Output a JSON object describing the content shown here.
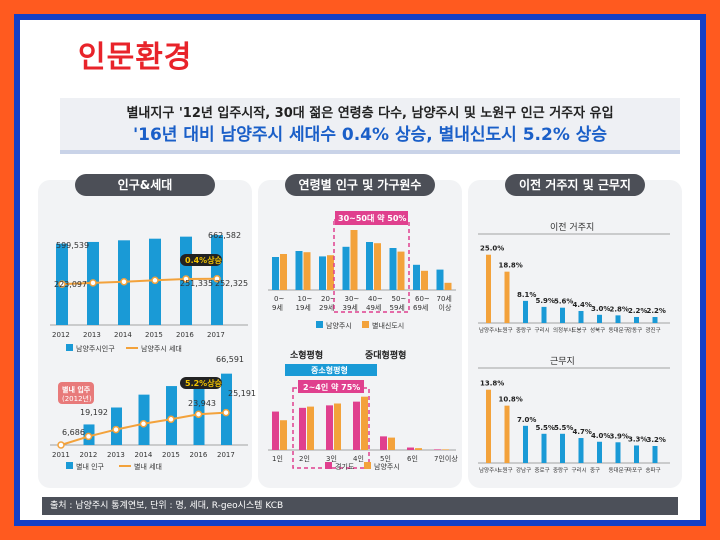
{
  "page": {
    "title": "인문환경",
    "banner_line1": "별내지구 '12년 입주시작, 30대 젊은 연령층 다수, 남양주시 및 노원구 인근 거주자 유입",
    "banner_line2": "'16년 대비 남양주시 세대수 0.4% 상승, 별내신도시 5.2% 상승",
    "footer": "출처 : 남양주시 통계연보, 단위 : 명, 세대, R-geo시스템 KCB"
  },
  "panels": {
    "left": "인구&세대",
    "middle": "연령별 인구 및 가구원수",
    "right": "이전 거주지 및 근무지"
  },
  "colors": {
    "blue": "#1a9ad6",
    "orange": "#f3a23b",
    "pink": "#e0408e",
    "yellow": "#f2c200",
    "red": "#e8232a"
  },
  "chart_data": [
    {
      "type": "bar",
      "id": "namyangju-pop",
      "categories": [
        "2012",
        "2013",
        "2014",
        "2015",
        "2016",
        "2017"
      ],
      "series": [
        {
          "name": "남양주시인구",
          "values": [
            599539,
            612000,
            624000,
            636000,
            651000,
            662582
          ]
        },
        {
          "name": "남양주시 세대",
          "values": [
            223097,
            230000,
            236000,
            244000,
            251335,
            252325
          ]
        }
      ],
      "labels": [
        "599,539",
        "662,582",
        "223,097",
        "251,335",
        "252,325"
      ],
      "annotation": "0.4%상승"
    },
    {
      "type": "bar",
      "id": "byeollae-pop",
      "categories": [
        "2011",
        "2012",
        "2013",
        "2014",
        "2015",
        "2016",
        "2017"
      ],
      "series": [
        {
          "name": "별내 인구",
          "values": [
            0,
            19192,
            35000,
            47000,
            55000,
            61000,
            66591
          ]
        },
        {
          "name": "별내 세대",
          "values": [
            0,
            6686,
            12000,
            16500,
            20000,
            23943,
            25191
          ]
        }
      ],
      "labels": [
        "19,192",
        "6,686",
        "66,591",
        "23,943",
        "25,191"
      ],
      "annotation": "5.2%상승",
      "callout": [
        "별내 입주",
        "(2012년)"
      ]
    },
    {
      "type": "bar",
      "id": "age-groups",
      "categories": [
        "0~9세",
        "10~19세",
        "20~29세",
        "30~39세",
        "40~49세",
        "50~59세",
        "60~69세",
        "70세 이상"
      ],
      "series": [
        {
          "name": "남양주시",
          "values": [
            55,
            65,
            56,
            72,
            80,
            70,
            42,
            34
          ]
        },
        {
          "name": "별내신도시",
          "values": [
            60,
            63,
            58,
            100,
            78,
            64,
            32,
            12
          ]
        }
      ],
      "highlight": "30~50대 약 50%"
    },
    {
      "type": "bar",
      "id": "household-size",
      "categories": [
        "1인",
        "2인",
        "3인",
        "4인",
        "5인",
        "6인",
        "7인이상"
      ],
      "series": [
        {
          "name": "경기도",
          "values": [
            62,
            68,
            72,
            78,
            22,
            4,
            1
          ]
        },
        {
          "name": "남양주시",
          "values": [
            48,
            70,
            75,
            86,
            20,
            3,
            1
          ]
        }
      ],
      "tabs": [
        "소형평형",
        "중대형평형"
      ],
      "sub_tab": "중소형평형",
      "highlight": "2~4인 약 75%"
    },
    {
      "type": "bar",
      "id": "prev-residence",
      "title": "이전 거주지",
      "categories": [
        "남양주시",
        "노원구",
        "중랑구",
        "구리시",
        "의정부시",
        "도봉구",
        "성북구",
        "동대문구",
        "강동구",
        "광진구"
      ],
      "values": [
        25.0,
        18.8,
        8.1,
        5.9,
        5.6,
        4.4,
        3.0,
        2.8,
        2.2,
        2.2
      ],
      "labels": [
        "25.0%",
        "18.8%",
        "8.1%",
        "5.9%",
        "5.6%",
        "4.4%",
        "3.0%",
        "2.8%",
        "2.2%",
        "2.2%"
      ]
    },
    {
      "type": "bar",
      "id": "workplace",
      "title": "근무지",
      "categories": [
        "남양주시",
        "노원구",
        "강남구",
        "중로구",
        "중랑구",
        "구리시",
        "중구",
        "동대문구",
        "마포구",
        "송파구"
      ],
      "values": [
        13.8,
        10.8,
        7.0,
        5.5,
        5.5,
        4.7,
        4.0,
        3.9,
        3.3,
        3.2
      ],
      "labels": [
        "13.8%",
        "10.8%",
        "7.0%",
        "5.5%",
        "5.5%",
        "4.7%",
        "4.0%",
        "3.9%",
        "3.3%",
        "3.2%"
      ]
    }
  ]
}
